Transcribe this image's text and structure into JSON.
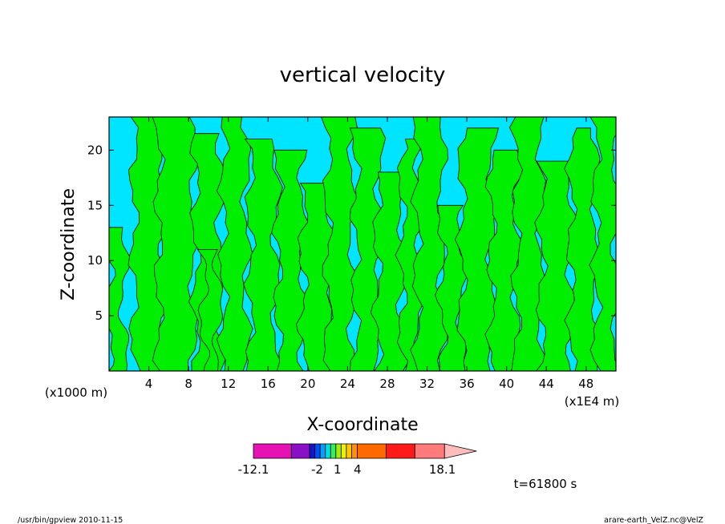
{
  "chart_data": {
    "type": "heatmap",
    "title": "vertical velocity",
    "xlabel": "X-coordinate",
    "ylabel": "Z-coordinate",
    "x_unit_left": "(x1000 m)",
    "x_unit_right": "(x1E4 m)",
    "xlim": [
      0,
      51
    ],
    "ylim": [
      0,
      23
    ],
    "x_ticks": [
      4,
      8,
      12,
      16,
      20,
      24,
      28,
      32,
      36,
      40,
      44,
      48
    ],
    "y_ticks": [
      5,
      10,
      15,
      20
    ],
    "background_color": "#00e5ff",
    "feature_color": "#00ee00",
    "green_bands": [
      {
        "x0": 0.0,
        "x1": 1.5,
        "zmax": 13
      },
      {
        "x0": 2.5,
        "x1": 5.5,
        "zmax": 23
      },
      {
        "x0": 5.0,
        "x1": 8.5,
        "zmax": 23
      },
      {
        "x0": 8.7,
        "x1": 11.2,
        "zmax": 21.5
      },
      {
        "x0": 9.5,
        "x1": 11.0,
        "zmax": 11
      },
      {
        "x0": 11.5,
        "x1": 13.8,
        "zmax": 23
      },
      {
        "x0": 14.2,
        "x1": 16.8,
        "zmax": 21
      },
      {
        "x0": 17.0,
        "x1": 19.5,
        "zmax": 20
      },
      {
        "x0": 19.5,
        "x1": 22.5,
        "zmax": 17
      },
      {
        "x0": 22.0,
        "x1": 24.5,
        "zmax": 23
      },
      {
        "x0": 24.8,
        "x1": 27.2,
        "zmax": 22
      },
      {
        "x0": 27.0,
        "x1": 29.5,
        "zmax": 18
      },
      {
        "x0": 29.5,
        "x1": 31.2,
        "zmax": 21
      },
      {
        "x0": 31.0,
        "x1": 33.5,
        "zmax": 23
      },
      {
        "x0": 33.5,
        "x1": 35.5,
        "zmax": 15
      },
      {
        "x0": 35.5,
        "x1": 38.5,
        "zmax": 22
      },
      {
        "x0": 38.5,
        "x1": 41.0,
        "zmax": 20
      },
      {
        "x0": 41.0,
        "x1": 43.5,
        "zmax": 23
      },
      {
        "x0": 43.5,
        "x1": 46.5,
        "zmax": 19
      },
      {
        "x0": 46.5,
        "x1": 49.0,
        "zmax": 22
      },
      {
        "x0": 49.0,
        "x1": 51.0,
        "zmax": 23
      }
    ],
    "colorbar": {
      "min_label": "-12.1",
      "max_label": "18.1",
      "labels": [
        {
          "text": "-12.1",
          "pos": 0.0
        },
        {
          "text": "-2",
          "pos": 0.292
        },
        {
          "text": "1",
          "pos": 0.385
        },
        {
          "text": "4",
          "pos": 0.477
        },
        {
          "text": "18.1",
          "pos": 0.866
        }
      ],
      "segments": [
        {
          "color": "#e612b4",
          "w": 0.174
        },
        {
          "color": "#8a10c8",
          "w": 0.084
        },
        {
          "color": "#1414c8",
          "w": 0.024
        },
        {
          "color": "#0050ff",
          "w": 0.024
        },
        {
          "color": "#00a0ff",
          "w": 0.024
        },
        {
          "color": "#00e0e0",
          "w": 0.024
        },
        {
          "color": "#30f060",
          "w": 0.024
        },
        {
          "color": "#a0f000",
          "w": 0.024
        },
        {
          "color": "#f0f000",
          "w": 0.024
        },
        {
          "color": "#ffc800",
          "w": 0.024
        },
        {
          "color": "#ff9000",
          "w": 0.026
        },
        {
          "color": "#ff6a00",
          "w": 0.132
        },
        {
          "color": "#ff1a1a",
          "w": 0.132
        },
        {
          "color": "#ff7a7a",
          "w": 0.136
        }
      ],
      "arrow_color": "#ffbcbc"
    },
    "time_label": "t=61800 s"
  },
  "footer": {
    "left": "/usr/bin/gpview   2010-11-15",
    "right": "arare-earth_VelZ.nc@VelZ"
  }
}
